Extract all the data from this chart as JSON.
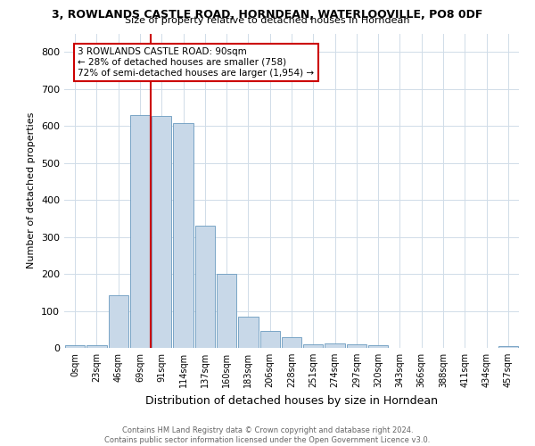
{
  "title": "3, ROWLANDS CASTLE ROAD, HORNDEAN, WATERLOOVILLE, PO8 0DF",
  "subtitle": "Size of property relative to detached houses in Horndean",
  "xlabel": "Distribution of detached houses by size in Horndean",
  "ylabel": "Number of detached properties",
  "bar_color": "#c8d8e8",
  "bar_edge_color": "#6a9abf",
  "bin_labels": [
    "0sqm",
    "23sqm",
    "46sqm",
    "69sqm",
    "91sqm",
    "114sqm",
    "137sqm",
    "160sqm",
    "183sqm",
    "206sqm",
    "228sqm",
    "251sqm",
    "274sqm",
    "297sqm",
    "320sqm",
    "343sqm",
    "366sqm",
    "388sqm",
    "411sqm",
    "434sqm",
    "457sqm"
  ],
  "bar_values": [
    7,
    7,
    143,
    630,
    628,
    608,
    330,
    200,
    85,
    45,
    28,
    10,
    12,
    9,
    7,
    0,
    0,
    0,
    0,
    0,
    5
  ],
  "ylim": [
    0,
    850
  ],
  "yticks": [
    0,
    100,
    200,
    300,
    400,
    500,
    600,
    700,
    800
  ],
  "annotation_text": "3 ROWLANDS CASTLE ROAD: 90sqm\n← 28% of detached houses are smaller (758)\n72% of semi-detached houses are larger (1,954) →",
  "annotation_box_color": "#ffffff",
  "annotation_box_edge": "#cc0000",
  "line_color": "#cc0000",
  "footer_text": "Contains HM Land Registry data © Crown copyright and database right 2024.\nContains public sector information licensed under the Open Government Licence v3.0.",
  "bg_color": "#ffffff",
  "grid_color": "#d0dce8"
}
